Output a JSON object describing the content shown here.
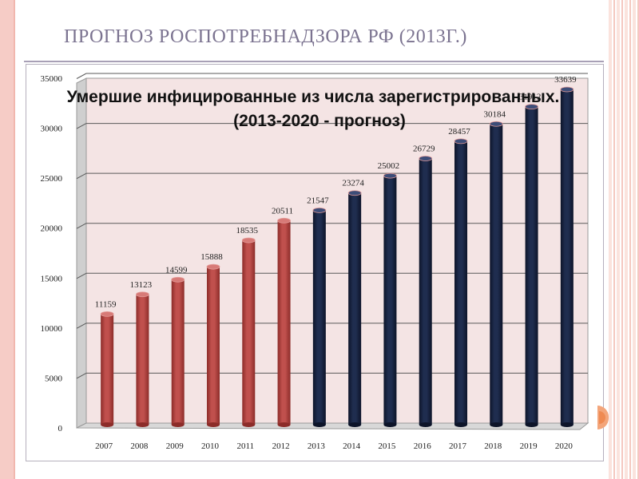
{
  "slide": {
    "title": "ПРОГНОЗ РОСПОТРЕБНАДЗОРА РФ (2013Г.)"
  },
  "colors": {
    "actual_bar": "#c0504d",
    "actual_bar_dark": "#8c2c29",
    "forecast_bar": "#1f2d4f",
    "forecast_bar_dark": "#0d1429",
    "plot_back": "#f4e4e4",
    "frame": "#ffffff",
    "title_color": "#7b7390"
  },
  "chart_data": {
    "type": "bar",
    "title": "Умершие инфицированные из числа зарегистрированных.",
    "subtitle": "(2013-2020 - прогноз)",
    "categories": [
      "2007",
      "2008",
      "2009",
      "2010",
      "2011",
      "2012",
      "2013",
      "2014",
      "2015",
      "2016",
      "2017",
      "2018",
      "2019",
      "2020"
    ],
    "values": [
      11159,
      13123,
      14599,
      15888,
      18535,
      20511,
      21547,
      23274,
      25002,
      26729,
      28457,
      30184,
      31912,
      33639
    ],
    "bar_kind": [
      "actual",
      "actual",
      "actual",
      "actual",
      "actual",
      "actual",
      "forecast",
      "forecast",
      "forecast",
      "forecast",
      "forecast",
      "forecast",
      "forecast",
      "forecast"
    ],
    "y_ticks": [
      0,
      5000,
      10000,
      15000,
      20000,
      25000,
      30000,
      35000
    ],
    "ylim": [
      0,
      35000
    ],
    "grid": true,
    "xlabel": "",
    "ylabel": ""
  }
}
